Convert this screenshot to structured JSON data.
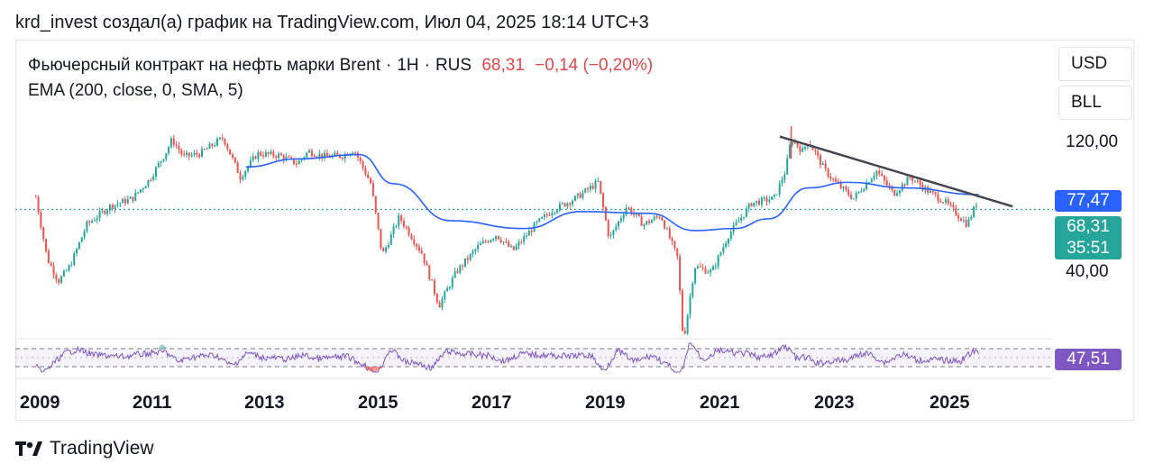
{
  "header": {
    "text": "krd_invest создал(а) график на TradingView.com, Июл 04, 2025 18:14 UTC+3"
  },
  "legend": {
    "symbol": "Фьючерсный контракт на нефть марки Brent",
    "interval": "1H",
    "exchange": "RUS",
    "price": "68,31",
    "change": "−0,14 (−0,20%)",
    "indicator": "EMA (200, close, 0, SMA, 5)"
  },
  "axis": {
    "currency": "USD",
    "unit": "BLL",
    "ticks": [
      "120,00",
      "40,00"
    ],
    "ema_tag": "77,47",
    "price_tag": "68,31",
    "countdown_tag": "35:51",
    "rsi_tag": "47,51"
  },
  "x_axis": {
    "years": [
      "2009",
      "2011",
      "2013",
      "2015",
      "2017",
      "2019",
      "2021",
      "2023",
      "2025"
    ]
  },
  "brand": {
    "name": "TradingView"
  },
  "colors": {
    "up": "#26a69a",
    "down": "#ef5350",
    "ema": "#2962ff",
    "trendline": "#434651",
    "rsi": "#7e57c2",
    "price_tag": "#26a69a",
    "ema_tag": "#2962ff",
    "rsi_tag": "#7e57c2"
  },
  "chart_data": {
    "type": "candlestick",
    "series": "Brent crude oil futures",
    "y_axis": {
      "scale": "log",
      "ticks": [
        120,
        40
      ]
    },
    "close_points": [
      {
        "x": 2008.9,
        "y": 76
      },
      {
        "x": 2009.1,
        "y": 45
      },
      {
        "x": 2009.3,
        "y": 37
      },
      {
        "x": 2009.5,
        "y": 42
      },
      {
        "x": 2009.8,
        "y": 60
      },
      {
        "x": 2010.2,
        "y": 70
      },
      {
        "x": 2010.6,
        "y": 75
      },
      {
        "x": 2010.9,
        "y": 88
      },
      {
        "x": 2011.2,
        "y": 112
      },
      {
        "x": 2011.3,
        "y": 124
      },
      {
        "x": 2011.5,
        "y": 107
      },
      {
        "x": 2011.8,
        "y": 110
      },
      {
        "x": 2012.2,
        "y": 126
      },
      {
        "x": 2012.5,
        "y": 90
      },
      {
        "x": 2012.8,
        "y": 110
      },
      {
        "x": 2013.2,
        "y": 108
      },
      {
        "x": 2013.5,
        "y": 101
      },
      {
        "x": 2013.7,
        "y": 112
      },
      {
        "x": 2014.0,
        "y": 107
      },
      {
        "x": 2014.3,
        "y": 108
      },
      {
        "x": 2014.5,
        "y": 114
      },
      {
        "x": 2014.8,
        "y": 85
      },
      {
        "x": 2015.0,
        "y": 46
      },
      {
        "x": 2015.3,
        "y": 64
      },
      {
        "x": 2015.7,
        "y": 47
      },
      {
        "x": 2016.0,
        "y": 30
      },
      {
        "x": 2016.3,
        "y": 40
      },
      {
        "x": 2016.7,
        "y": 50
      },
      {
        "x": 2017.0,
        "y": 55
      },
      {
        "x": 2017.3,
        "y": 48
      },
      {
        "x": 2017.7,
        "y": 60
      },
      {
        "x": 2018.0,
        "y": 68
      },
      {
        "x": 2018.4,
        "y": 75
      },
      {
        "x": 2018.8,
        "y": 86
      },
      {
        "x": 2019.0,
        "y": 53
      },
      {
        "x": 2019.3,
        "y": 70
      },
      {
        "x": 2019.6,
        "y": 60
      },
      {
        "x": 2019.9,
        "y": 65
      },
      {
        "x": 2020.2,
        "y": 45
      },
      {
        "x": 2020.3,
        "y": 22
      },
      {
        "x": 2020.5,
        "y": 42
      },
      {
        "x": 2020.8,
        "y": 40
      },
      {
        "x": 2021.1,
        "y": 55
      },
      {
        "x": 2021.5,
        "y": 72
      },
      {
        "x": 2021.9,
        "y": 75
      },
      {
        "x": 2022.1,
        "y": 95
      },
      {
        "x": 2022.2,
        "y": 125
      },
      {
        "x": 2022.4,
        "y": 112
      },
      {
        "x": 2022.5,
        "y": 123
      },
      {
        "x": 2022.8,
        "y": 95
      },
      {
        "x": 2023.0,
        "y": 85
      },
      {
        "x": 2023.3,
        "y": 75
      },
      {
        "x": 2023.7,
        "y": 95
      },
      {
        "x": 2024.0,
        "y": 78
      },
      {
        "x": 2024.3,
        "y": 90
      },
      {
        "x": 2024.6,
        "y": 80
      },
      {
        "x": 2024.9,
        "y": 73
      },
      {
        "x": 2025.3,
        "y": 60
      },
      {
        "x": 2025.5,
        "y": 75
      },
      {
        "x": 2025.5,
        "y": 68.31
      }
    ],
    "ema_points": [
      {
        "x": 2012.6,
        "y": 98
      },
      {
        "x": 2013.5,
        "y": 105
      },
      {
        "x": 2014.6,
        "y": 109
      },
      {
        "x": 2015.2,
        "y": 85
      },
      {
        "x": 2016.2,
        "y": 62
      },
      {
        "x": 2017.5,
        "y": 58
      },
      {
        "x": 2018.5,
        "y": 67
      },
      {
        "x": 2019.7,
        "y": 66
      },
      {
        "x": 2020.5,
        "y": 57
      },
      {
        "x": 2021.2,
        "y": 58
      },
      {
        "x": 2021.8,
        "y": 63
      },
      {
        "x": 2022.5,
        "y": 82
      },
      {
        "x": 2023.2,
        "y": 86
      },
      {
        "x": 2024.2,
        "y": 82
      },
      {
        "x": 2025.5,
        "y": 77.47
      }
    ],
    "trendline": {
      "x": [
        2022.0,
        2026.1
      ],
      "y": [
        127,
        70
      ]
    },
    "last_price": 68.31,
    "ema_last": 77.47,
    "rsi_last": 47.51,
    "x_ticks": [
      "2009",
      "2011",
      "2013",
      "2015",
      "2017",
      "2019",
      "2021",
      "2023",
      "2025"
    ]
  }
}
